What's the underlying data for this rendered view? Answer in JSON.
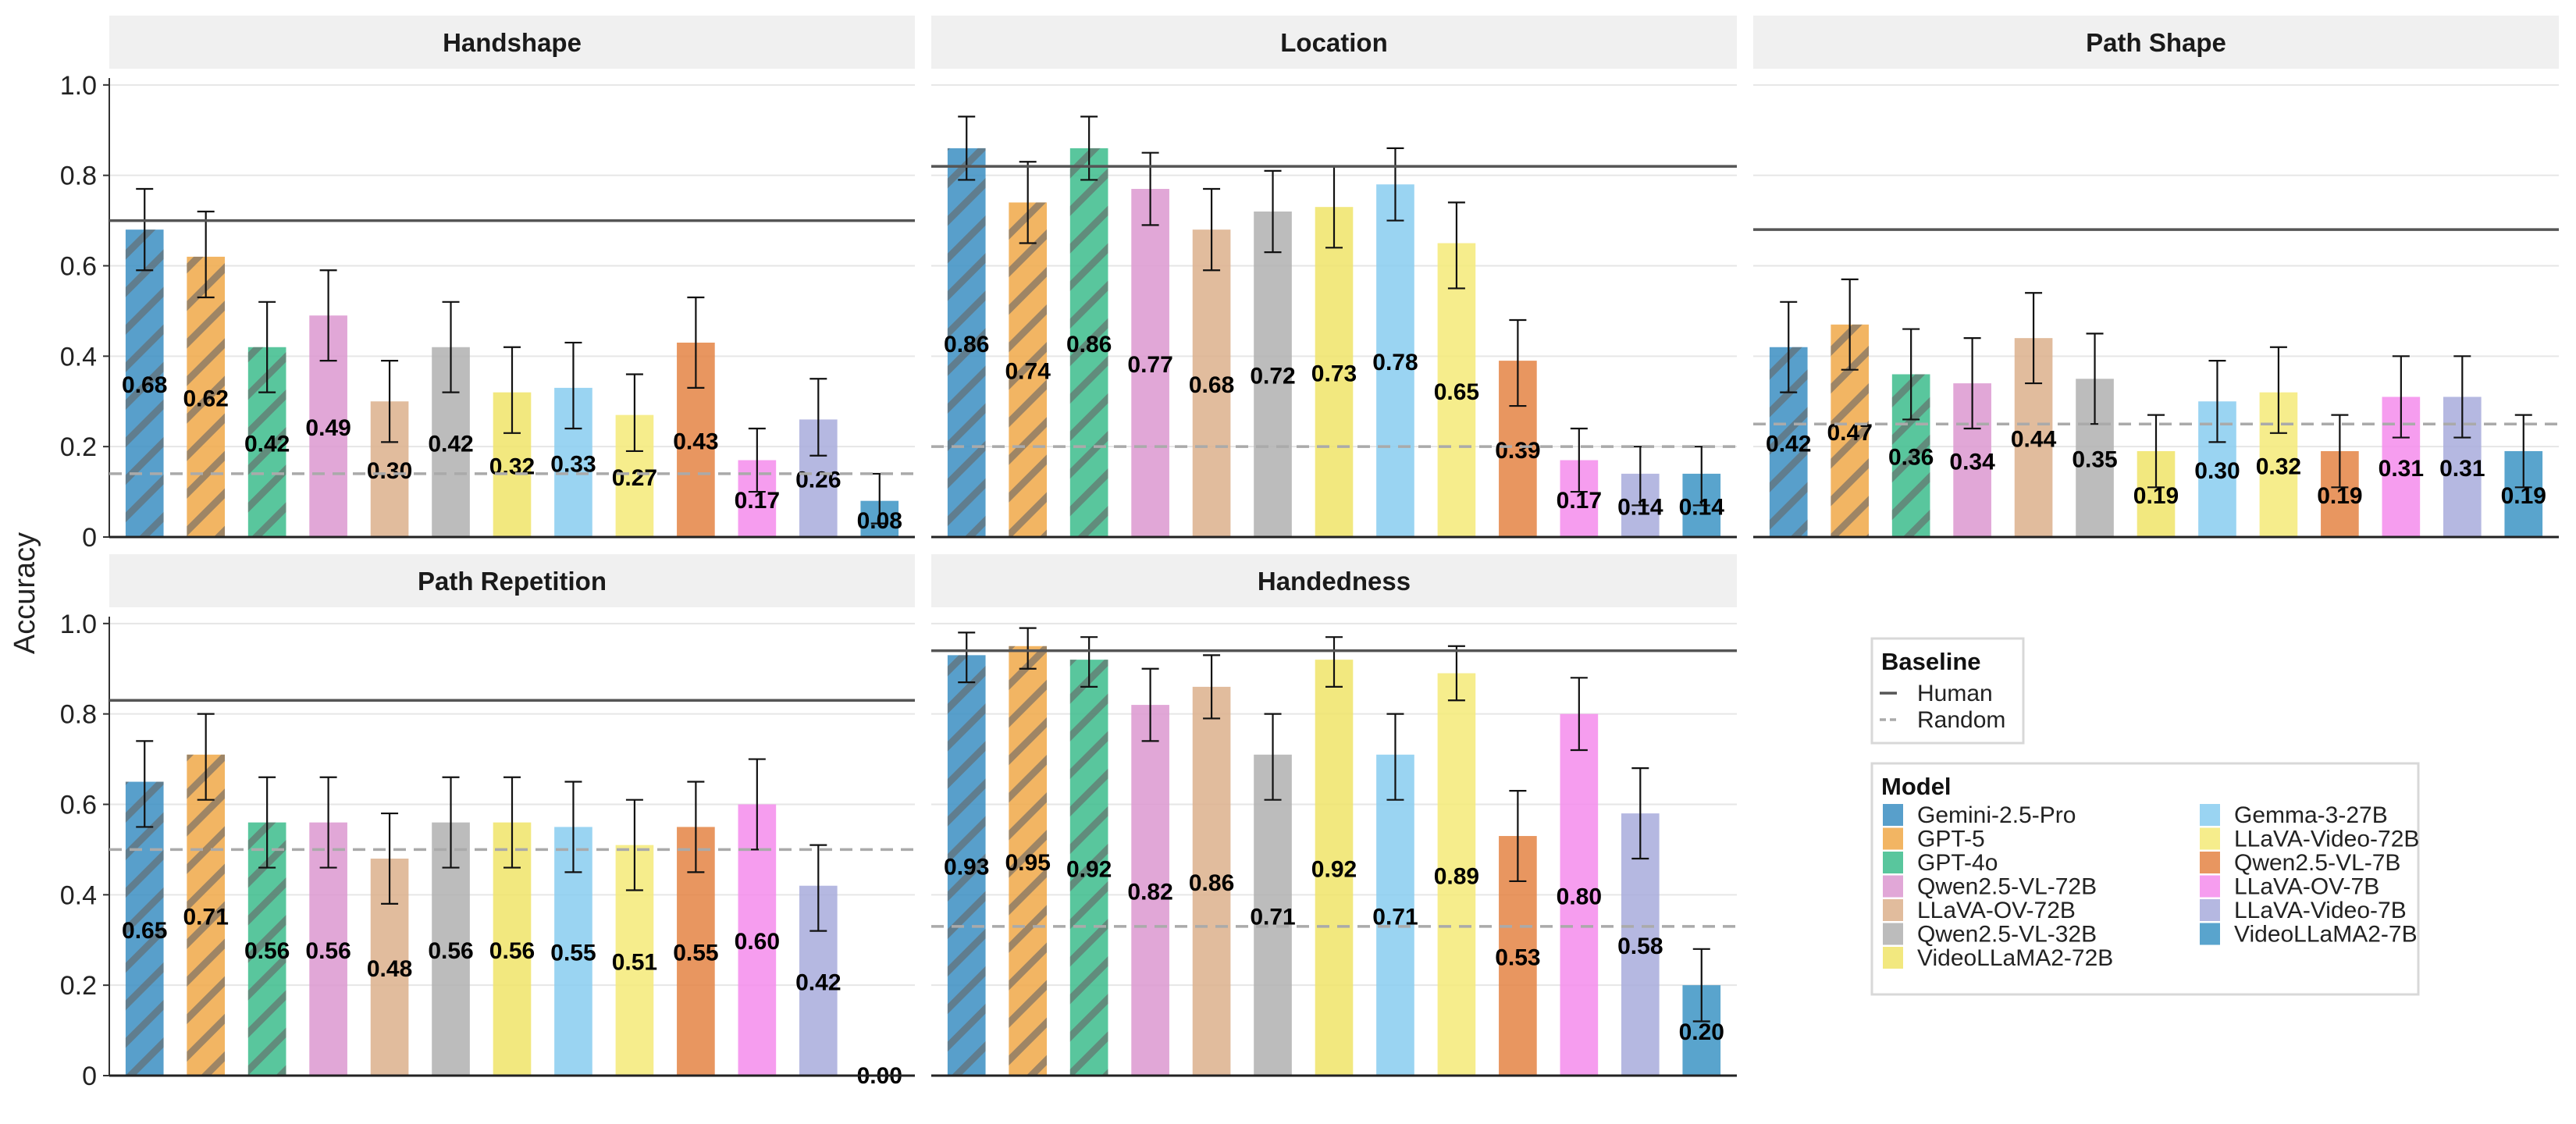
{
  "chart_data": {
    "type": "bar",
    "ylabel": "Accuracy",
    "ylim": [
      0,
      1
    ],
    "yticks": [
      "0",
      "0.2",
      "0.4",
      "0.6",
      "0.8",
      "1.0"
    ],
    "grid": true,
    "models": [
      "Gemini-2.5-Pro",
      "GPT-5",
      "GPT-4o",
      "Qwen2.5-VL-72B",
      "LLaVA-OV-72B",
      "Qwen2.5-VL-32B",
      "VideoLLaMA2-72B",
      "Gemma-3-27B",
      "LLaVA-Video-72B",
      "Qwen2.5-VL-7B",
      "LLaVA-OV-7B",
      "LLaVA-Video-7B",
      "VideoLLaMA2-7B"
    ],
    "colors": [
      "#3b8ec2",
      "#f0a848",
      "#3cbc8c",
      "#dc98d0",
      "#dcb08c",
      "#b0b0b0",
      "#f0e468",
      "#88ccf0",
      "#f4ea78",
      "#e48444",
      "#f48cec",
      "#a8acdc",
      "#3c94c4"
    ],
    "hatched_models": [
      "Gemini-2.5-Pro",
      "GPT-5",
      "GPT-4o"
    ],
    "facets": [
      {
        "title": "Handshape",
        "values": [
          0.68,
          0.62,
          0.42,
          0.49,
          0.3,
          0.42,
          0.32,
          0.33,
          0.27,
          0.43,
          0.17,
          0.26,
          0.08
        ],
        "labels": [
          "0.68",
          "0.62",
          "0.42",
          "0.49",
          "0.30",
          "0.42",
          "0.32",
          "0.33",
          "0.27",
          "0.43",
          "0.17",
          "0.26",
          "0.08"
        ],
        "error_low": [
          0.59,
          0.53,
          0.32,
          0.39,
          0.21,
          0.32,
          0.23,
          0.24,
          0.19,
          0.33,
          0.1,
          0.18,
          0.03
        ],
        "error_high": [
          0.77,
          0.72,
          0.52,
          0.59,
          0.39,
          0.52,
          0.42,
          0.43,
          0.36,
          0.53,
          0.24,
          0.35,
          0.14
        ],
        "human": 0.7,
        "random": 0.14
      },
      {
        "title": "Location",
        "values": [
          0.86,
          0.74,
          0.86,
          0.77,
          0.68,
          0.72,
          0.73,
          0.78,
          0.65,
          0.39,
          0.17,
          0.14,
          0.14
        ],
        "labels": [
          "0.86",
          "0.74",
          "0.86",
          "0.77",
          "0.68",
          "0.72",
          "0.73",
          "0.78",
          "0.65",
          "0.39",
          "0.17",
          "0.14",
          "0.14"
        ],
        "error_low": [
          0.79,
          0.65,
          0.79,
          0.69,
          0.59,
          0.63,
          0.64,
          0.7,
          0.55,
          0.29,
          0.1,
          0.07,
          0.07
        ],
        "error_high": [
          0.93,
          0.83,
          0.93,
          0.85,
          0.77,
          0.81,
          0.82,
          0.86,
          0.74,
          0.48,
          0.24,
          0.2,
          0.2
        ],
        "human": 0.82,
        "random": 0.2
      },
      {
        "title": "Path Shape",
        "values": [
          0.42,
          0.47,
          0.36,
          0.34,
          0.44,
          0.35,
          0.19,
          0.3,
          0.32,
          0.19,
          0.31,
          0.31,
          0.19
        ],
        "labels": [
          "0.42",
          "0.47",
          "0.36",
          "0.34",
          "0.44",
          "0.35",
          "0.19",
          "0.30",
          "0.32",
          "0.19",
          "0.31",
          "0.31",
          "0.19"
        ],
        "error_low": [
          0.32,
          0.37,
          0.26,
          0.24,
          0.34,
          0.25,
          0.11,
          0.21,
          0.23,
          0.11,
          0.22,
          0.22,
          0.11
        ],
        "error_high": [
          0.52,
          0.57,
          0.46,
          0.44,
          0.54,
          0.45,
          0.27,
          0.39,
          0.42,
          0.27,
          0.4,
          0.4,
          0.27
        ],
        "human": 0.68,
        "random": 0.25
      },
      {
        "title": "Path Repetition",
        "values": [
          0.65,
          0.71,
          0.56,
          0.56,
          0.48,
          0.56,
          0.56,
          0.55,
          0.51,
          0.55,
          0.6,
          0.42,
          0.0
        ],
        "labels": [
          "0.65",
          "0.71",
          "0.56",
          "0.56",
          "0.48",
          "0.56",
          "0.56",
          "0.55",
          "0.51",
          "0.55",
          "0.60",
          "0.42",
          "0.00"
        ],
        "error_low": [
          0.55,
          0.61,
          0.46,
          0.46,
          0.38,
          0.46,
          0.46,
          0.45,
          0.41,
          0.45,
          0.5,
          0.32,
          0.0
        ],
        "error_high": [
          0.74,
          0.8,
          0.66,
          0.66,
          0.58,
          0.66,
          0.66,
          0.65,
          0.61,
          0.65,
          0.7,
          0.51,
          0.0
        ],
        "human": 0.83,
        "random": 0.5
      },
      {
        "title": "Handedness",
        "values": [
          0.93,
          0.95,
          0.92,
          0.82,
          0.86,
          0.71,
          0.92,
          0.71,
          0.89,
          0.53,
          0.8,
          0.58,
          0.2
        ],
        "labels": [
          "0.93",
          "0.95",
          "0.92",
          "0.82",
          "0.86",
          "0.71",
          "0.92",
          "0.71",
          "0.89",
          "0.53",
          "0.80",
          "0.58",
          "0.20"
        ],
        "error_low": [
          0.87,
          0.9,
          0.86,
          0.74,
          0.79,
          0.61,
          0.86,
          0.61,
          0.83,
          0.43,
          0.72,
          0.48,
          0.12
        ],
        "error_high": [
          0.98,
          0.99,
          0.97,
          0.9,
          0.93,
          0.8,
          0.97,
          0.8,
          0.95,
          0.63,
          0.88,
          0.68,
          0.28
        ],
        "human": 0.94,
        "random": 0.33
      }
    ],
    "legend": {
      "baseline_title": "Baseline",
      "baseline_items": [
        "Human",
        "Random"
      ],
      "model_title": "Model"
    }
  }
}
